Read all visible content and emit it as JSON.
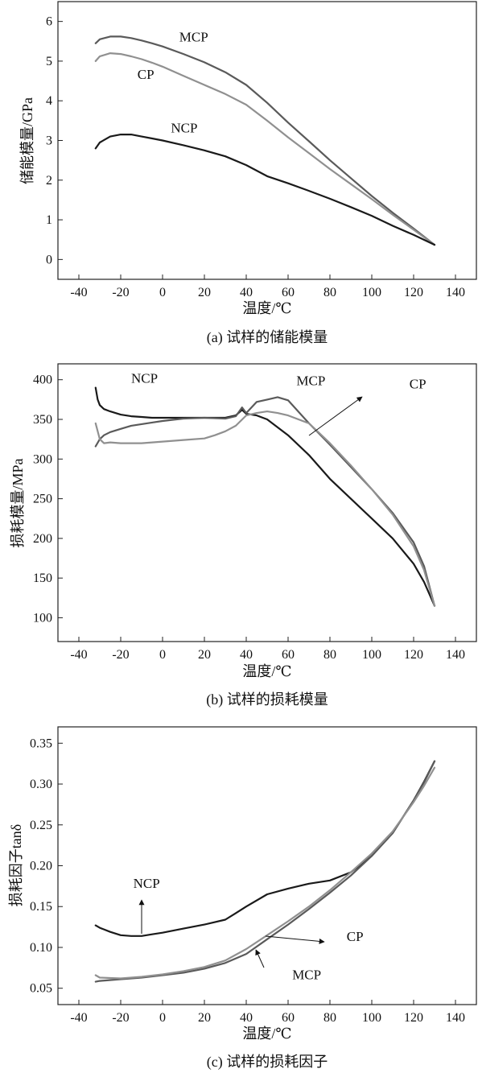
{
  "chart_data": [
    {
      "type": "line",
      "caption": "(a) 试样的储能模量",
      "xlabel": "温度/℃",
      "ylabel": "储能模量/GPa",
      "xlim": [
        -50,
        150
      ],
      "ylim": [
        -0.5,
        6.5
      ],
      "xticks": [
        -40,
        -20,
        0,
        20,
        40,
        60,
        80,
        100,
        120,
        140
      ],
      "yticks": [
        0,
        1,
        2,
        3,
        4,
        5,
        6
      ],
      "tick_decimals": 0,
      "series": [
        {
          "name": "MCP",
          "color": "#5a5a5a",
          "x": [
            -32,
            -30,
            -25,
            -20,
            -15,
            -10,
            -5,
            0,
            10,
            20,
            30,
            40,
            50,
            60,
            70,
            80,
            90,
            100,
            110,
            120,
            130
          ],
          "y": [
            5.45,
            5.55,
            5.62,
            5.62,
            5.58,
            5.52,
            5.45,
            5.37,
            5.18,
            4.97,
            4.72,
            4.4,
            3.95,
            3.45,
            2.98,
            2.5,
            2.05,
            1.6,
            1.18,
            0.78,
            0.37
          ]
        },
        {
          "name": "CP",
          "color": "#909090",
          "x": [
            -32,
            -30,
            -25,
            -20,
            -15,
            -10,
            -5,
            0,
            10,
            20,
            30,
            40,
            50,
            60,
            70,
            80,
            90,
            100,
            110,
            120,
            130
          ],
          "y": [
            5.0,
            5.12,
            5.2,
            5.18,
            5.12,
            5.05,
            4.96,
            4.86,
            4.63,
            4.4,
            4.17,
            3.9,
            3.5,
            3.08,
            2.68,
            2.28,
            1.9,
            1.52,
            1.13,
            0.75,
            0.37
          ]
        },
        {
          "name": "NCP",
          "color": "#1a1a1a",
          "x": [
            -32,
            -30,
            -25,
            -20,
            -15,
            -10,
            -5,
            0,
            10,
            20,
            30,
            40,
            50,
            60,
            70,
            80,
            90,
            100,
            110,
            120,
            130
          ],
          "y": [
            2.8,
            2.95,
            3.1,
            3.15,
            3.15,
            3.1,
            3.05,
            3.0,
            2.88,
            2.75,
            2.6,
            2.38,
            2.1,
            1.92,
            1.73,
            1.53,
            1.32,
            1.1,
            0.85,
            0.62,
            0.37
          ]
        }
      ],
      "labels": [
        {
          "text": "MCP",
          "x": 8,
          "y": 5.5
        },
        {
          "text": "CP",
          "x": -12,
          "y": 4.55
        },
        {
          "text": "NCP",
          "x": 4,
          "y": 3.2
        }
      ]
    },
    {
      "type": "line",
      "caption": "(b) 试样的损耗模量",
      "xlabel": "温度/℃",
      "ylabel": "损耗模量/MPa",
      "xlim": [
        -50,
        150
      ],
      "ylim": [
        70,
        420
      ],
      "xticks": [
        -40,
        -20,
        0,
        20,
        40,
        60,
        80,
        100,
        120,
        140
      ],
      "yticks": [
        100,
        150,
        200,
        250,
        300,
        350,
        400
      ],
      "tick_decimals": 0,
      "series": [
        {
          "name": "NCP",
          "color": "#1a1a1a",
          "x": [
            -32,
            -31,
            -30,
            -28,
            -25,
            -20,
            -15,
            -10,
            -5,
            0,
            10,
            20,
            30,
            35,
            38,
            40,
            45,
            50,
            60,
            70,
            80,
            90,
            100,
            110,
            120,
            125,
            130
          ],
          "y": [
            390,
            375,
            368,
            363,
            360,
            356,
            354,
            353,
            352,
            352,
            352,
            352,
            352,
            355,
            362,
            357,
            355,
            350,
            330,
            305,
            275,
            250,
            225,
            200,
            168,
            145,
            115
          ]
        },
        {
          "name": "MCP",
          "color": "#5a5a5a",
          "x": [
            -32,
            -30,
            -28,
            -25,
            -20,
            -15,
            -10,
            -5,
            0,
            10,
            20,
            30,
            35,
            38,
            40,
            45,
            50,
            55,
            60,
            70,
            80,
            90,
            100,
            110,
            120,
            125,
            130
          ],
          "y": [
            316,
            325,
            330,
            334,
            338,
            342,
            344,
            346,
            348,
            351,
            352,
            351,
            354,
            365,
            358,
            372,
            375,
            378,
            374,
            345,
            318,
            290,
            262,
            232,
            195,
            165,
            115
          ]
        },
        {
          "name": "CP",
          "color": "#909090",
          "x": [
            -32,
            -30,
            -28,
            -25,
            -20,
            -10,
            0,
            10,
            20,
            25,
            30,
            35,
            40,
            45,
            50,
            55,
            60,
            70,
            80,
            90,
            100,
            110,
            120,
            125,
            130
          ],
          "y": [
            345,
            325,
            320,
            321,
            320,
            320,
            322,
            324,
            326,
            330,
            335,
            342,
            355,
            358,
            360,
            358,
            355,
            345,
            320,
            292,
            262,
            230,
            190,
            160,
            115
          ]
        }
      ],
      "labels": [
        {
          "text": "NCP",
          "x": -15,
          "y": 396
        },
        {
          "text": "MCP",
          "x": 64,
          "y": 393
        },
        {
          "text": "CP",
          "x": 118,
          "y": 389
        }
      ]
    },
    {
      "type": "line",
      "caption": "(c) 试样的损耗因子",
      "xlabel": "温度/℃",
      "ylabel": "损耗因子tanδ",
      "xlim": [
        -50,
        150
      ],
      "ylim": [
        0.03,
        0.37
      ],
      "xticks": [
        -40,
        -20,
        0,
        20,
        40,
        60,
        80,
        100,
        120,
        140
      ],
      "yticks": [
        0.05,
        0.1,
        0.15,
        0.2,
        0.25,
        0.3,
        0.35
      ],
      "tick_decimals": 2,
      "series": [
        {
          "name": "NCP",
          "color": "#1a1a1a",
          "x": [
            -32,
            -30,
            -28,
            -25,
            -20,
            -15,
            -10,
            -5,
            0,
            10,
            20,
            30,
            35,
            40,
            50,
            60,
            70,
            80,
            90,
            100,
            110,
            120,
            125,
            130
          ],
          "y": [
            0.127,
            0.124,
            0.122,
            0.119,
            0.115,
            0.114,
            0.114,
            0.116,
            0.118,
            0.123,
            0.128,
            0.134,
            0.142,
            0.15,
            0.165,
            0.172,
            0.178,
            0.182,
            0.192,
            0.212,
            0.24,
            0.28,
            0.303,
            0.328
          ]
        },
        {
          "name": "MCP",
          "color": "#5a5a5a",
          "x": [
            -32,
            -30,
            -20,
            -10,
            0,
            10,
            20,
            30,
            40,
            50,
            60,
            70,
            80,
            90,
            100,
            110,
            120,
            125,
            130
          ],
          "y": [
            0.058,
            0.059,
            0.061,
            0.063,
            0.066,
            0.069,
            0.074,
            0.081,
            0.092,
            0.11,
            0.128,
            0.147,
            0.167,
            0.188,
            0.212,
            0.24,
            0.28,
            0.302,
            0.328
          ]
        },
        {
          "name": "CP",
          "color": "#909090",
          "x": [
            -32,
            -30,
            -20,
            -10,
            0,
            10,
            20,
            30,
            40,
            50,
            60,
            70,
            80,
            90,
            100,
            110,
            120,
            125,
            130
          ],
          "y": [
            0.066,
            0.063,
            0.062,
            0.064,
            0.067,
            0.071,
            0.076,
            0.084,
            0.098,
            0.115,
            0.132,
            0.15,
            0.17,
            0.192,
            0.215,
            0.242,
            0.278,
            0.298,
            0.32
          ]
        }
      ],
      "labels": [
        {
          "text": "NCP",
          "x": -14,
          "y": 0.173
        },
        {
          "text": "CP",
          "x": 88,
          "y": 0.108
        },
        {
          "text": "MCP",
          "x": 62,
          "y": 0.061
        }
      ]
    }
  ]
}
